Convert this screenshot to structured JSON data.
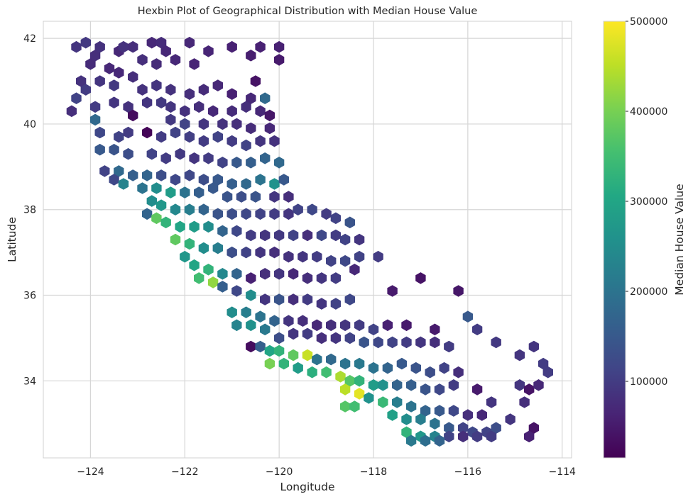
{
  "chart_data": {
    "type": "hexbin",
    "title": "Hexbin Plot of Geographical Distribution with Median House Value",
    "xlabel": "Longitude",
    "ylabel": "Latitude",
    "xlim": [
      -125,
      -113.8
    ],
    "ylim": [
      32.2,
      42.4
    ],
    "xticks": [
      -124,
      -122,
      -120,
      -118,
      -116,
      -114
    ],
    "xtick_labels": [
      "−124",
      "−122",
      "−120",
      "−118",
      "−116",
      "−114"
    ],
    "yticks": [
      34,
      36,
      38,
      40,
      42
    ],
    "ytick_labels": [
      "34",
      "36",
      "38",
      "40",
      "42"
    ],
    "grid": true,
    "colormap": "viridis",
    "colorbar": {
      "label": "Median House Value",
      "range": [
        15000,
        500000
      ],
      "ticks": [
        100000,
        200000,
        300000,
        400000,
        500000
      ],
      "tick_labels": [
        "100000",
        "200000",
        "300000",
        "400000",
        "500000"
      ]
    },
    "points": [
      [
        -124.3,
        41.8,
        90000
      ],
      [
        -124.1,
        41.9,
        95000
      ],
      [
        -123.9,
        41.6,
        80000
      ],
      [
        -123.8,
        41.8,
        85000
      ],
      [
        -123.4,
        41.7,
        70000
      ],
      [
        -123.3,
        41.8,
        85000
      ],
      [
        -123.1,
        41.8,
        80000
      ],
      [
        -122.7,
        41.9,
        70000
      ],
      [
        -122.5,
        41.9,
        75000
      ],
      [
        -122.4,
        41.7,
        70000
      ],
      [
        -121.9,
        41.9,
        70000
      ],
      [
        -121.5,
        41.7,
        65000
      ],
      [
        -121.0,
        41.8,
        60000
      ],
      [
        -120.6,
        41.6,
        55000
      ],
      [
        -120.4,
        41.8,
        60000
      ],
      [
        -120.0,
        41.8,
        60000
      ],
      [
        -124.0,
        41.4,
        75000
      ],
      [
        -123.6,
        41.3,
        70000
      ],
      [
        -122.9,
        41.5,
        80000
      ],
      [
        -122.6,
        41.4,
        75000
      ],
      [
        -122.2,
        41.5,
        70000
      ],
      [
        -121.8,
        41.4,
        65000
      ],
      [
        -120.0,
        41.5,
        50000
      ],
      [
        -123.4,
        41.2,
        70000
      ],
      [
        -123.1,
        41.1,
        80000
      ],
      [
        -124.2,
        41.0,
        85000
      ],
      [
        -123.8,
        41.0,
        90000
      ],
      [
        -123.5,
        40.9,
        95000
      ],
      [
        -122.9,
        40.8,
        85000
      ],
      [
        -122.6,
        40.9,
        90000
      ],
      [
        -122.3,
        40.8,
        85000
      ],
      [
        -121.9,
        40.7,
        80000
      ],
      [
        -121.6,
        40.8,
        75000
      ],
      [
        -121.3,
        40.9,
        70000
      ],
      [
        -121.0,
        40.7,
        60000
      ],
      [
        -120.6,
        40.6,
        70000
      ],
      [
        -120.3,
        40.6,
        180000
      ],
      [
        -120.5,
        41.0,
        40000
      ],
      [
        -124.3,
        40.6,
        110000
      ],
      [
        -124.1,
        40.8,
        100000
      ],
      [
        -123.9,
        40.4,
        100000
      ],
      [
        -123.5,
        40.5,
        90000
      ],
      [
        -123.2,
        40.4,
        85000
      ],
      [
        -122.8,
        40.5,
        90000
      ],
      [
        -122.5,
        40.5,
        95000
      ],
      [
        -122.3,
        40.4,
        90000
      ],
      [
        -122.0,
        40.3,
        85000
      ],
      [
        -121.7,
        40.4,
        80000
      ],
      [
        -121.4,
        40.3,
        70000
      ],
      [
        -121.0,
        40.3,
        75000
      ],
      [
        -120.7,
        40.4,
        80000
      ],
      [
        -120.4,
        40.3,
        70000
      ],
      [
        -120.2,
        40.2,
        45000
      ],
      [
        -124.4,
        40.3,
        80000
      ],
      [
        -123.1,
        40.2,
        30000
      ],
      [
        -122.3,
        40.1,
        95000
      ],
      [
        -122.0,
        40.0,
        110000
      ],
      [
        -121.6,
        40.0,
        90000
      ],
      [
        -121.2,
        40.0,
        85000
      ],
      [
        -120.9,
        40.0,
        80000
      ],
      [
        -120.6,
        39.9,
        75000
      ],
      [
        -120.2,
        39.9,
        70000
      ],
      [
        -123.9,
        40.1,
        180000
      ],
      [
        -123.8,
        39.8,
        120000
      ],
      [
        -123.4,
        39.7,
        110000
      ],
      [
        -123.2,
        39.8,
        100000
      ],
      [
        -122.8,
        39.8,
        20000
      ],
      [
        -122.5,
        39.7,
        100000
      ],
      [
        -122.2,
        39.8,
        110000
      ],
      [
        -121.9,
        39.7,
        105000
      ],
      [
        -121.6,
        39.6,
        100000
      ],
      [
        -121.3,
        39.7,
        110000
      ],
      [
        -121.0,
        39.6,
        100000
      ],
      [
        -120.7,
        39.5,
        110000
      ],
      [
        -120.4,
        39.6,
        90000
      ],
      [
        -120.1,
        39.6,
        85000
      ],
      [
        -123.8,
        39.4,
        150000
      ],
      [
        -123.5,
        39.4,
        140000
      ],
      [
        -123.2,
        39.3,
        130000
      ],
      [
        -122.7,
        39.3,
        110000
      ],
      [
        -122.4,
        39.2,
        100000
      ],
      [
        -122.1,
        39.3,
        95000
      ],
      [
        -121.8,
        39.2,
        90000
      ],
      [
        -121.5,
        39.2,
        100000
      ],
      [
        -121.2,
        39.1,
        110000
      ],
      [
        -120.9,
        39.1,
        150000
      ],
      [
        -120.6,
        39.1,
        160000
      ],
      [
        -120.3,
        39.2,
        170000
      ],
      [
        -120.0,
        39.1,
        180000
      ],
      [
        -123.7,
        38.9,
        110000
      ],
      [
        -123.4,
        38.9,
        180000
      ],
      [
        -123.1,
        38.8,
        160000
      ],
      [
        -122.8,
        38.8,
        170000
      ],
      [
        -122.5,
        38.8,
        130000
      ],
      [
        -122.2,
        38.7,
        120000
      ],
      [
        -121.9,
        38.8,
        120000
      ],
      [
        -121.6,
        38.7,
        130000
      ],
      [
        -121.3,
        38.7,
        150000
      ],
      [
        -121.0,
        38.6,
        160000
      ],
      [
        -120.7,
        38.6,
        180000
      ],
      [
        -120.4,
        38.7,
        200000
      ],
      [
        -120.1,
        38.6,
        260000
      ],
      [
        -119.9,
        38.7,
        150000
      ],
      [
        -123.5,
        38.7,
        120000
      ],
      [
        -123.3,
        38.6,
        230000
      ],
      [
        -122.9,
        38.5,
        200000
      ],
      [
        -122.6,
        38.5,
        250000
      ],
      [
        -122.3,
        38.4,
        280000
      ],
      [
        -122.0,
        38.4,
        200000
      ],
      [
        -121.7,
        38.4,
        160000
      ],
      [
        -121.4,
        38.5,
        150000
      ],
      [
        -121.1,
        38.3,
        140000
      ],
      [
        -120.8,
        38.3,
        130000
      ],
      [
        -120.5,
        38.3,
        140000
      ],
      [
        -120.1,
        38.3,
        90000
      ],
      [
        -119.8,
        38.3,
        80000
      ],
      [
        -122.7,
        38.2,
        250000
      ],
      [
        -122.5,
        38.1,
        270000
      ],
      [
        -122.2,
        38.0,
        240000
      ],
      [
        -121.9,
        38.0,
        220000
      ],
      [
        -121.6,
        38.0,
        170000
      ],
      [
        -121.3,
        37.9,
        140000
      ],
      [
        -121.0,
        37.9,
        130000
      ],
      [
        -120.7,
        37.9,
        120000
      ],
      [
        -120.4,
        37.9,
        110000
      ],
      [
        -120.1,
        37.9,
        100000
      ],
      [
        -119.8,
        37.9,
        90000
      ],
      [
        -119.6,
        38.0,
        110000
      ],
      [
        -119.3,
        38.0,
        120000
      ],
      [
        -119.0,
        37.9,
        100000
      ],
      [
        -118.8,
        37.8,
        110000
      ],
      [
        -118.5,
        37.7,
        140000
      ],
      [
        -122.8,
        37.9,
        170000
      ],
      [
        -122.6,
        37.8,
        380000
      ],
      [
        -122.4,
        37.7,
        330000
      ],
      [
        -122.1,
        37.6,
        300000
      ],
      [
        -121.8,
        37.6,
        280000
      ],
      [
        -121.5,
        37.6,
        250000
      ],
      [
        -121.2,
        37.5,
        170000
      ],
      [
        -120.9,
        37.5,
        120000
      ],
      [
        -120.6,
        37.4,
        100000
      ],
      [
        -120.3,
        37.4,
        90000
      ],
      [
        -120.0,
        37.4,
        95000
      ],
      [
        -119.7,
        37.4,
        110000
      ],
      [
        -119.4,
        37.4,
        80000
      ],
      [
        -119.1,
        37.4,
        120000
      ],
      [
        -118.8,
        37.4,
        100000
      ],
      [
        -118.6,
        37.3,
        110000
      ],
      [
        -118.3,
        37.3,
        90000
      ],
      [
        -122.2,
        37.3,
        380000
      ],
      [
        -121.9,
        37.2,
        330000
      ],
      [
        -121.6,
        37.1,
        250000
      ],
      [
        -121.3,
        37.1,
        220000
      ],
      [
        -121.0,
        37.0,
        130000
      ],
      [
        -120.7,
        37.0,
        110000
      ],
      [
        -120.4,
        37.0,
        90000
      ],
      [
        -120.1,
        37.0,
        80000
      ],
      [
        -119.8,
        36.9,
        85000
      ],
      [
        -119.5,
        36.9,
        90000
      ],
      [
        -119.2,
        36.9,
        100000
      ],
      [
        -118.9,
        36.8,
        110000
      ],
      [
        -118.6,
        36.8,
        120000
      ],
      [
        -118.3,
        36.9,
        110000
      ],
      [
        -117.9,
        36.9,
        100000
      ],
      [
        -122.0,
        36.9,
        270000
      ],
      [
        -121.8,
        36.7,
        300000
      ],
      [
        -121.5,
        36.6,
        330000
      ],
      [
        -121.2,
        36.5,
        240000
      ],
      [
        -120.9,
        36.5,
        170000
      ],
      [
        -120.6,
        36.4,
        60000
      ],
      [
        -120.3,
        36.5,
        80000
      ],
      [
        -120.0,
        36.5,
        90000
      ],
      [
        -119.7,
        36.5,
        70000
      ],
      [
        -119.4,
        36.4,
        80000
      ],
      [
        -119.1,
        36.4,
        90000
      ],
      [
        -118.8,
        36.4,
        100000
      ],
      [
        -118.4,
        36.6,
        70000
      ],
      [
        -121.7,
        36.4,
        350000
      ],
      [
        -121.4,
        36.3,
        420000
      ],
      [
        -121.2,
        36.2,
        160000
      ],
      [
        -120.9,
        36.1,
        120000
      ],
      [
        -120.6,
        36.0,
        250000
      ],
      [
        -120.3,
        35.9,
        90000
      ],
      [
        -120.0,
        35.9,
        140000
      ],
      [
        -119.7,
        35.9,
        80000
      ],
      [
        -119.4,
        35.9,
        100000
      ],
      [
        -119.1,
        35.8,
        90000
      ],
      [
        -118.8,
        35.8,
        110000
      ],
      [
        -118.5,
        35.9,
        120000
      ],
      [
        -117.6,
        36.1,
        50000
      ],
      [
        -117.0,
        36.4,
        40000
      ],
      [
        -116.2,
        36.1,
        45000
      ],
      [
        -121.0,
        35.6,
        250000
      ],
      [
        -120.7,
        35.6,
        220000
      ],
      [
        -120.4,
        35.5,
        200000
      ],
      [
        -120.1,
        35.4,
        170000
      ],
      [
        -119.8,
        35.4,
        90000
      ],
      [
        -119.5,
        35.4,
        80000
      ],
      [
        -119.2,
        35.3,
        70000
      ],
      [
        -118.9,
        35.3,
        80000
      ],
      [
        -118.6,
        35.3,
        90000
      ],
      [
        -118.3,
        35.3,
        100000
      ],
      [
        -118.0,
        35.2,
        110000
      ],
      [
        -117.7,
        35.3,
        60000
      ],
      [
        -117.3,
        35.3,
        50000
      ],
      [
        -116.7,
        35.2,
        50000
      ],
      [
        -116.0,
        35.5,
        150000
      ],
      [
        -120.9,
        35.3,
        230000
      ],
      [
        -120.6,
        35.3,
        260000
      ],
      [
        -120.3,
        35.2,
        210000
      ],
      [
        -120.0,
        35.0,
        130000
      ],
      [
        -119.7,
        35.1,
        90000
      ],
      [
        -119.4,
        35.1,
        100000
      ],
      [
        -119.1,
        35.0,
        80000
      ],
      [
        -118.8,
        35.0,
        90000
      ],
      [
        -118.5,
        35.0,
        110000
      ],
      [
        -118.2,
        34.9,
        140000
      ],
      [
        -117.9,
        34.9,
        120000
      ],
      [
        -117.6,
        34.9,
        110000
      ],
      [
        -117.3,
        34.9,
        100000
      ],
      [
        -117.0,
        34.9,
        90000
      ],
      [
        -116.7,
        34.9,
        80000
      ],
      [
        -116.4,
        34.8,
        100000
      ],
      [
        -115.8,
        35.2,
        100000
      ],
      [
        -115.4,
        34.9,
        95000
      ],
      [
        -120.6,
        34.8,
        30000
      ],
      [
        -120.4,
        34.8,
        160000
      ],
      [
        -120.2,
        34.7,
        300000
      ],
      [
        -120.0,
        34.7,
        330000
      ],
      [
        -119.7,
        34.6,
        380000
      ],
      [
        -119.4,
        34.6,
        460000
      ],
      [
        -119.2,
        34.5,
        200000
      ],
      [
        -118.9,
        34.5,
        180000
      ],
      [
        -118.6,
        34.4,
        200000
      ],
      [
        -118.3,
        34.4,
        210000
      ],
      [
        -118.0,
        34.3,
        200000
      ],
      [
        -117.7,
        34.3,
        170000
      ],
      [
        -117.4,
        34.4,
        150000
      ],
      [
        -117.1,
        34.3,
        140000
      ],
      [
        -116.8,
        34.2,
        130000
      ],
      [
        -116.5,
        34.3,
        110000
      ],
      [
        -116.2,
        34.2,
        80000
      ],
      [
        -114.9,
        34.6,
        90000
      ],
      [
        -114.6,
        34.8,
        90000
      ],
      [
        -114.4,
        34.4,
        100000
      ],
      [
        -114.3,
        34.2,
        100000
      ],
      [
        -120.2,
        34.4,
        400000
      ],
      [
        -119.9,
        34.4,
        330000
      ],
      [
        -119.6,
        34.3,
        280000
      ],
      [
        -119.3,
        34.2,
        320000
      ],
      [
        -119.0,
        34.2,
        350000
      ],
      [
        -118.7,
        34.1,
        440000
      ],
      [
        -118.5,
        34.0,
        370000
      ],
      [
        -118.3,
        34.0,
        330000
      ],
      [
        -118.0,
        33.9,
        280000
      ],
      [
        -117.8,
        33.9,
        260000
      ],
      [
        -117.5,
        33.9,
        170000
      ],
      [
        -117.2,
        33.9,
        160000
      ],
      [
        -116.9,
        33.8,
        140000
      ],
      [
        -116.6,
        33.8,
        120000
      ],
      [
        -116.3,
        33.9,
        100000
      ],
      [
        -115.8,
        33.8,
        50000
      ],
      [
        -114.9,
        33.9,
        90000
      ],
      [
        -114.7,
        33.8,
        40000
      ],
      [
        -114.5,
        33.9,
        70000
      ],
      [
        -118.6,
        33.8,
        450000
      ],
      [
        -118.3,
        33.7,
        480000
      ],
      [
        -118.1,
        33.6,
        260000
      ],
      [
        -117.8,
        33.5,
        340000
      ],
      [
        -117.5,
        33.5,
        220000
      ],
      [
        -117.2,
        33.4,
        200000
      ],
      [
        -116.9,
        33.3,
        170000
      ],
      [
        -116.6,
        33.3,
        150000
      ],
      [
        -116.3,
        33.3,
        120000
      ],
      [
        -116.0,
        33.2,
        80000
      ],
      [
        -115.7,
        33.2,
        70000
      ],
      [
        -115.5,
        33.5,
        90000
      ],
      [
        -114.8,
        33.5,
        80000
      ],
      [
        -118.6,
        33.4,
        370000
      ],
      [
        -118.4,
        33.4,
        350000
      ],
      [
        -117.6,
        33.2,
        290000
      ],
      [
        -117.3,
        33.1,
        250000
      ],
      [
        -117.0,
        33.1,
        220000
      ],
      [
        -116.7,
        33.0,
        200000
      ],
      [
        -116.4,
        32.9,
        150000
      ],
      [
        -116.1,
        32.9,
        110000
      ],
      [
        -115.9,
        32.8,
        120000
      ],
      [
        -115.6,
        32.8,
        110000
      ],
      [
        -115.4,
        32.9,
        130000
      ],
      [
        -115.1,
        33.1,
        90000
      ],
      [
        -114.6,
        32.9,
        40000
      ],
      [
        -114.7,
        32.7,
        60000
      ],
      [
        -117.3,
        32.8,
        330000
      ],
      [
        -117.0,
        32.7,
        270000
      ],
      [
        -116.7,
        32.7,
        230000
      ],
      [
        -116.4,
        32.7,
        110000
      ],
      [
        -116.1,
        32.7,
        80000
      ],
      [
        -115.8,
        32.7,
        100000
      ],
      [
        -115.5,
        32.7,
        100000
      ],
      [
        -117.2,
        32.6,
        210000
      ],
      [
        -116.9,
        32.6,
        190000
      ],
      [
        -116.6,
        32.6,
        170000
      ]
    ]
  }
}
